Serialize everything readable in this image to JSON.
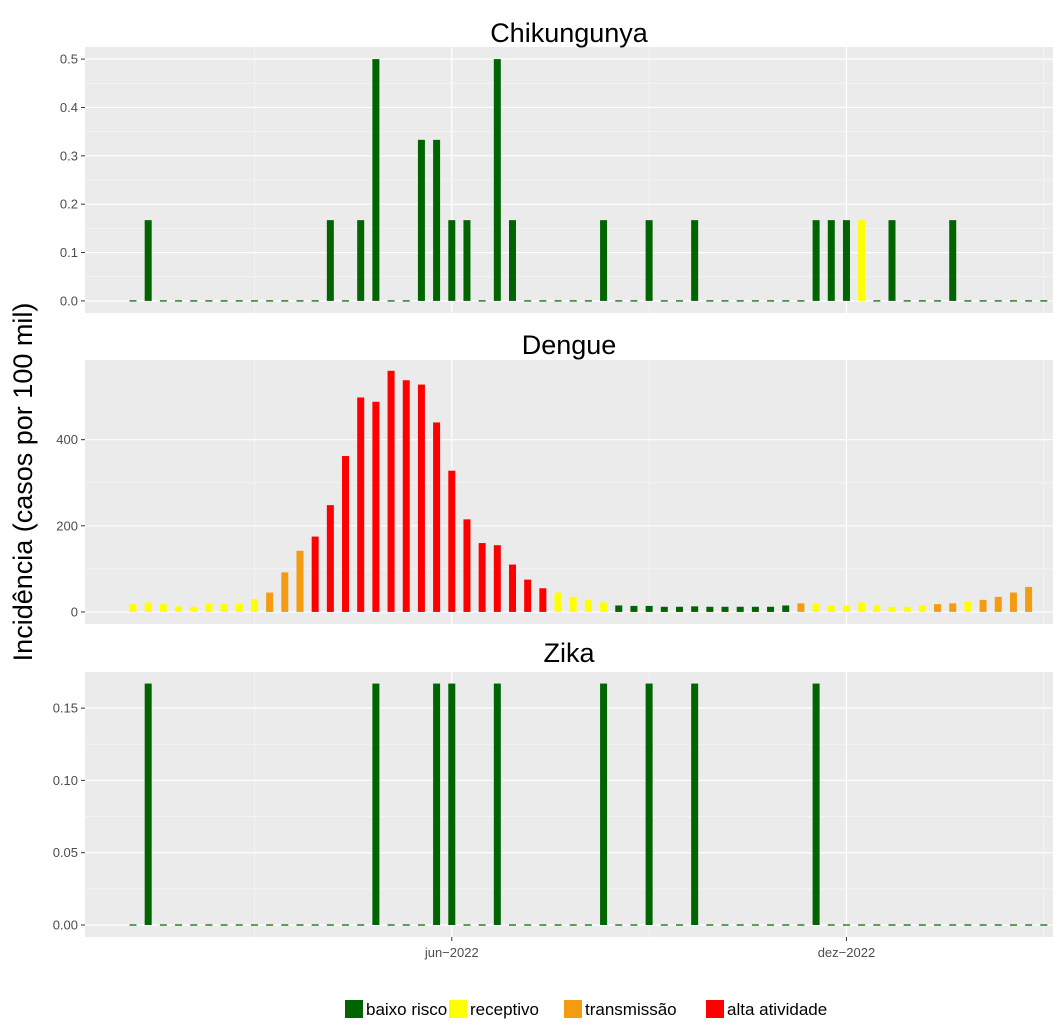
{
  "chart_data": {
    "type": "bar",
    "ylabel": "Incidência (casos por 100 mil)",
    "x_ticks": [
      {
        "label": "jun−2022",
        "week": 22
      },
      {
        "label": "dez−2022",
        "week": 48
      }
    ],
    "legend": {
      "position": "bottom",
      "items": [
        {
          "key": "baixo risco",
          "label": "baixo risco",
          "color": "#006400"
        },
        {
          "key": "receptivo",
          "label": "receptivo",
          "color": "#FFFF00"
        },
        {
          "key": "transmissão",
          "label": "transmissão",
          "color": "#F39C12"
        },
        {
          "key": "alta atividade",
          "label": "alta atividade",
          "color": "#FF0000"
        }
      ]
    },
    "panels": [
      {
        "title": "Chikungunya",
        "ylim": [
          -0.025,
          0.525
        ],
        "yticks": [
          0.0,
          0.1,
          0.2,
          0.3,
          0.4,
          0.5
        ],
        "ytick_labels": [
          "0.0",
          "0.1",
          "0.2",
          "0.3",
          "0.4",
          "0.5"
        ],
        "values": [
          0,
          0.167,
          0,
          0,
          0,
          0,
          0,
          0,
          0,
          0,
          0,
          0,
          0,
          0.167,
          0,
          0.167,
          0.5,
          0,
          0,
          0.333,
          0.333,
          0.167,
          0.167,
          0,
          0.5,
          0.167,
          0,
          0,
          0,
          0,
          0,
          0.167,
          0,
          0,
          0.167,
          0,
          0,
          0.167,
          0,
          0,
          0,
          0,
          0,
          0,
          0,
          0.167,
          0.167,
          0.167,
          0.167,
          0,
          0.167,
          0,
          0,
          0,
          0.167,
          0,
          0,
          0,
          0,
          0,
          0
        ],
        "levels": [
          "baixo risco",
          "baixo risco",
          "baixo risco",
          "baixo risco",
          "baixo risco",
          "baixo risco",
          "baixo risco",
          "baixo risco",
          "baixo risco",
          "baixo risco",
          "baixo risco",
          "baixo risco",
          "baixo risco",
          "baixo risco",
          "baixo risco",
          "baixo risco",
          "baixo risco",
          "baixo risco",
          "baixo risco",
          "baixo risco",
          "baixo risco",
          "baixo risco",
          "baixo risco",
          "baixo risco",
          "baixo risco",
          "baixo risco",
          "baixo risco",
          "baixo risco",
          "baixo risco",
          "baixo risco",
          "baixo risco",
          "baixo risco",
          "baixo risco",
          "baixo risco",
          "baixo risco",
          "baixo risco",
          "baixo risco",
          "baixo risco",
          "baixo risco",
          "baixo risco",
          "baixo risco",
          "baixo risco",
          "baixo risco",
          "baixo risco",
          "baixo risco",
          "baixo risco",
          "baixo risco",
          "baixo risco",
          "receptivo",
          "baixo risco",
          "baixo risco",
          "baixo risco",
          "baixo risco",
          "baixo risco",
          "baixo risco",
          "baixo risco",
          "baixo risco",
          "baixo risco",
          "baixo risco",
          "baixo risco",
          "baixo risco"
        ]
      },
      {
        "title": "Dengue",
        "ylim": [
          -28,
          585
        ],
        "yticks": [
          0,
          200,
          400
        ],
        "ytick_labels": [
          "0",
          "200",
          "400"
        ],
        "values": [
          18,
          22,
          18,
          13,
          12,
          20,
          18,
          20,
          30,
          45,
          92,
          142,
          175,
          248,
          362,
          498,
          488,
          560,
          538,
          528,
          440,
          328,
          215,
          160,
          155,
          110,
          75,
          55,
          45,
          35,
          28,
          22,
          15,
          14,
          14,
          12,
          12,
          13,
          12,
          12,
          12,
          12,
          12,
          15,
          20,
          20,
          15,
          15,
          22,
          15,
          12,
          12,
          15,
          18,
          20,
          25,
          28,
          35,
          45,
          58
        ],
        "levels": [
          "receptivo",
          "receptivo",
          "receptivo",
          "receptivo",
          "receptivo",
          "receptivo",
          "receptivo",
          "receptivo",
          "receptivo",
          "transmissão",
          "transmissão",
          "transmissão",
          "alta atividade",
          "alta atividade",
          "alta atividade",
          "alta atividade",
          "alta atividade",
          "alta atividade",
          "alta atividade",
          "alta atividade",
          "alta atividade",
          "alta atividade",
          "alta atividade",
          "alta atividade",
          "alta atividade",
          "alta atividade",
          "alta atividade",
          "alta atividade",
          "receptivo",
          "receptivo",
          "receptivo",
          "receptivo",
          "baixo risco",
          "baixo risco",
          "baixo risco",
          "baixo risco",
          "baixo risco",
          "baixo risco",
          "baixo risco",
          "baixo risco",
          "baixo risco",
          "baixo risco",
          "baixo risco",
          "baixo risco",
          "transmissão",
          "receptivo",
          "receptivo",
          "receptivo",
          "receptivo",
          "receptivo",
          "receptivo",
          "receptivo",
          "receptivo",
          "transmissão",
          "transmissão",
          "receptivo",
          "transmissão",
          "transmissão",
          "transmissão",
          "transmissão"
        ]
      },
      {
        "title": "Zika",
        "ylim": [
          -0.0083,
          0.175
        ],
        "yticks": [
          0.0,
          0.05,
          0.1,
          0.15
        ],
        "ytick_labels": [
          "0.00",
          "0.05",
          "0.10",
          "0.15"
        ],
        "values": [
          0,
          0.167,
          0,
          0,
          0,
          0,
          0,
          0,
          0,
          0,
          0,
          0,
          0,
          0,
          0,
          0,
          0.167,
          0,
          0,
          0,
          0.167,
          0.167,
          0,
          0,
          0.167,
          0,
          0,
          0,
          0,
          0,
          0,
          0.167,
          0,
          0,
          0.167,
          0,
          0,
          0.167,
          0,
          0,
          0,
          0,
          0,
          0,
          0,
          0.167,
          0,
          0,
          0,
          0,
          0,
          0,
          0,
          0,
          0,
          0,
          0,
          0,
          0,
          0,
          0
        ],
        "levels": [
          "baixo risco",
          "baixo risco",
          "baixo risco",
          "baixo risco",
          "baixo risco",
          "baixo risco",
          "baixo risco",
          "baixo risco",
          "baixo risco",
          "baixo risco",
          "baixo risco",
          "baixo risco",
          "baixo risco",
          "baixo risco",
          "baixo risco",
          "baixo risco",
          "baixo risco",
          "baixo risco",
          "baixo risco",
          "baixo risco",
          "baixo risco",
          "baixo risco",
          "baixo risco",
          "baixo risco",
          "baixo risco",
          "baixo risco",
          "baixo risco",
          "baixo risco",
          "baixo risco",
          "baixo risco",
          "baixo risco",
          "baixo risco",
          "baixo risco",
          "baixo risco",
          "baixo risco",
          "baixo risco",
          "baixo risco",
          "baixo risco",
          "baixo risco",
          "baixo risco",
          "baixo risco",
          "baixo risco",
          "baixo risco",
          "baixo risco",
          "baixo risco",
          "baixo risco",
          "baixo risco",
          "baixo risco",
          "baixo risco",
          "baixo risco",
          "baixo risco",
          "baixo risco",
          "baixo risco",
          "baixo risco",
          "baixo risco",
          "baixo risco",
          "baixo risco",
          "baixo risco",
          "baixo risco",
          "baixo risco",
          "baixo risco"
        ]
      }
    ]
  }
}
